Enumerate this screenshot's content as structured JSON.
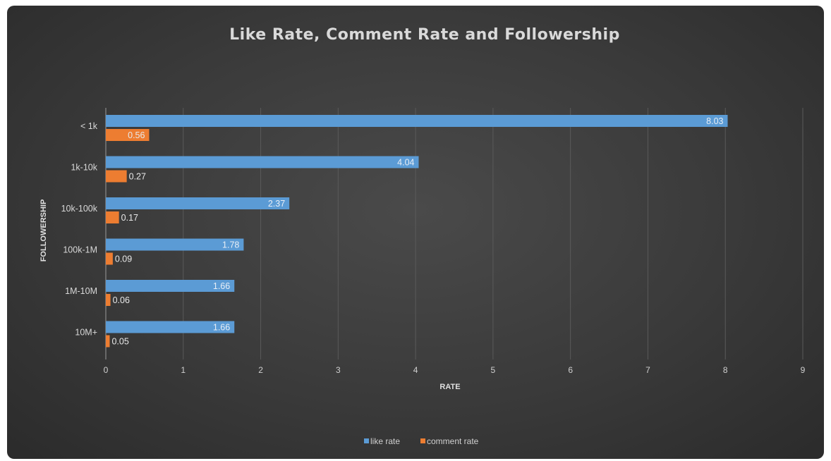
{
  "chart_data": {
    "type": "bar",
    "orientation": "horizontal",
    "title": "Like Rate, Comment Rate and Followership",
    "xlabel": "RATE",
    "ylabel": "FOLLOWERSHIP",
    "categories": [
      "< 1k",
      "1k-10k",
      "10k-100k",
      "100k-1M",
      "1M-10M",
      "10M+"
    ],
    "series": [
      {
        "name": "like rate",
        "values": [
          8.03,
          4.04,
          2.37,
          1.78,
          1.66,
          1.66
        ],
        "labels": [
          "8.03",
          "4.04",
          "2.37",
          "1.78",
          "1.66",
          "1.66"
        ]
      },
      {
        "name": "comment rate",
        "values": [
          0.56,
          0.27,
          0.17,
          0.09,
          0.06,
          0.05
        ],
        "labels": [
          "0.56",
          "0.27",
          "0.17",
          "0.09",
          "0.06",
          "0.05"
        ]
      }
    ],
    "xlim": [
      0,
      9
    ],
    "xticks": [
      "0",
      "1",
      "2",
      "3",
      "4",
      "5",
      "6",
      "7",
      "8",
      "9"
    ],
    "grid": true,
    "legend_position": "bottom",
    "colors": {
      "like rate": "#5b9bd5",
      "comment rate": "#ed7d31",
      "background": "#3c3c3c"
    }
  }
}
